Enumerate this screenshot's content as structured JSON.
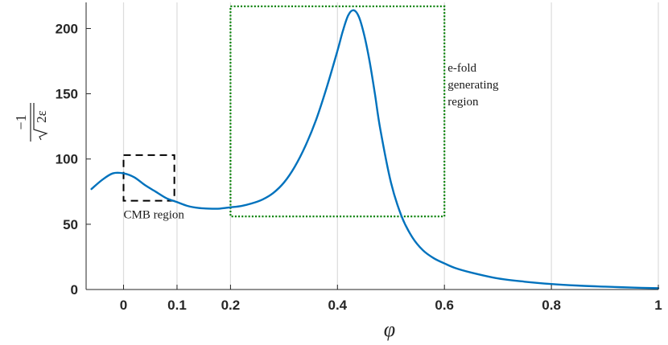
{
  "chart_data": {
    "type": "line",
    "xlabel": "φ",
    "ylabel": {
      "numerator": "−1",
      "radical": "2ε"
    },
    "xlim": [
      -0.07,
      1.0
    ],
    "ylim": [
      0,
      220
    ],
    "x_ticks": [
      0,
      0.1,
      0.2,
      0.4,
      0.6,
      0.8,
      1
    ],
    "x_tick_labels": [
      "0",
      "0.1",
      "0.2",
      "0.4",
      "0.6",
      "0.8",
      "1"
    ],
    "y_ticks": [
      0,
      50,
      100,
      150,
      200
    ],
    "y_tick_labels": [
      "0",
      "50",
      "100",
      "150",
      "200"
    ],
    "grid": "vertical",
    "series": [
      {
        "color": "#0072bd",
        "x": [
          -0.06,
          -0.04,
          -0.02,
          0.0,
          0.02,
          0.04,
          0.06,
          0.08,
          0.1,
          0.12,
          0.14,
          0.16,
          0.18,
          0.2,
          0.22,
          0.24,
          0.26,
          0.28,
          0.3,
          0.32,
          0.34,
          0.36,
          0.38,
          0.4,
          0.41,
          0.42,
          0.43,
          0.44,
          0.45,
          0.46,
          0.47,
          0.48,
          0.5,
          0.52,
          0.54,
          0.56,
          0.58,
          0.6,
          0.62,
          0.65,
          0.7,
          0.75,
          0.8,
          0.85,
          0.9,
          0.95,
          1.0
        ],
        "y": [
          77,
          84,
          89,
          89,
          86,
          80,
          75,
          70,
          67,
          64,
          62.5,
          62,
          62,
          63,
          64,
          66,
          69,
          74,
          82,
          94,
          110,
          130,
          155,
          183,
          198,
          210,
          214,
          209,
          195,
          175,
          150,
          123,
          82,
          56,
          40,
          30,
          24,
          20,
          16.5,
          13,
          8.5,
          6,
          4.2,
          3,
          2.2,
          1.5,
          1
        ]
      }
    ],
    "annotations": [
      {
        "text": "CMB region",
        "box": {
          "x": [
            0.0,
            0.095
          ],
          "y": [
            68,
            103
          ]
        },
        "style": "dashed",
        "color": "#000000"
      },
      {
        "text_lines": [
          "e-fold",
          "generating",
          "region"
        ],
        "box": {
          "x": [
            0.2,
            0.6
          ],
          "y": [
            56,
            217
          ]
        },
        "style": "dotted",
        "color": "#008000"
      }
    ]
  }
}
